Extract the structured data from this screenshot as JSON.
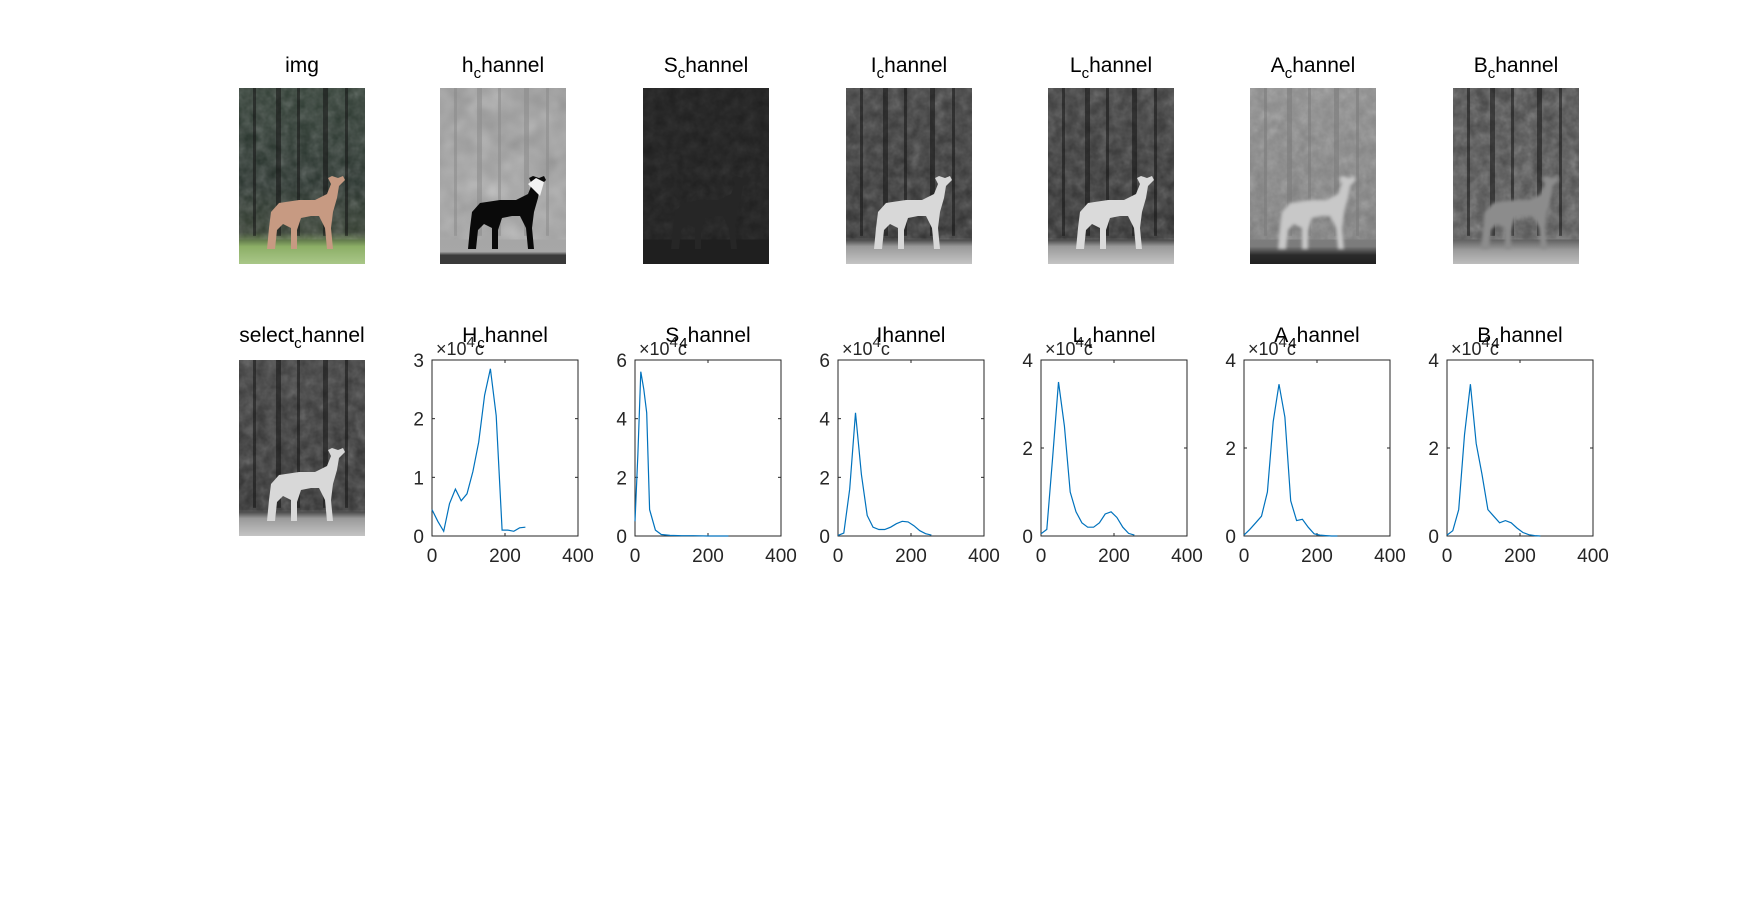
{
  "figure": {
    "image_panels": [
      {
        "title_main": "img",
        "title_sub": "",
        "title_rest": "",
        "kind": "color"
      },
      {
        "title_main": "h",
        "title_sub": "c",
        "title_rest": "hannel",
        "kind": "hue"
      },
      {
        "title_main": "S",
        "title_sub": "c",
        "title_rest": "hannel",
        "kind": "sat"
      },
      {
        "title_main": "I",
        "title_sub": "c",
        "title_rest": "hannel",
        "kind": "intensity"
      },
      {
        "title_main": "L",
        "title_sub": "c",
        "title_rest": "hannel",
        "kind": "light"
      },
      {
        "title_main": "A",
        "title_sub": "c",
        "title_rest": "hannel",
        "kind": "achan"
      },
      {
        "title_main": "B",
        "title_sub": "c",
        "title_rest": "hannel",
        "kind": "bchan"
      },
      {
        "title_main": "select",
        "title_sub": "c",
        "title_rest": "hannel",
        "kind": "intensity"
      }
    ],
    "exponent_label": {
      "times": "×10",
      "sup": "4",
      "tail": "c"
    }
  },
  "chart_data": [
    {
      "type": "line",
      "title_main": "H",
      "title_sub": "c",
      "title_rest": "hannel",
      "x": [
        0,
        16,
        32,
        48,
        64,
        80,
        96,
        112,
        128,
        144,
        160,
        176,
        192,
        208,
        224,
        240,
        256
      ],
      "series": [
        {
          "values": [
            0.45,
            0.25,
            0.08,
            0.55,
            0.8,
            0.6,
            0.72,
            1.1,
            1.6,
            2.4,
            2.85,
            2.05,
            0.1,
            0.1,
            0.08,
            0.14,
            0.15
          ]
        }
      ],
      "xlim": [
        0,
        400
      ],
      "ylim": [
        0,
        3
      ],
      "xticks": [
        0,
        200,
        400
      ],
      "xtick_labels": [
        "0",
        "200",
        "400"
      ],
      "yticks": [
        0,
        1,
        2,
        3
      ],
      "ytick_labels": [
        "0",
        "1",
        "2",
        "3"
      ],
      "line_color": "#0072BD",
      "grid": false
    },
    {
      "type": "line",
      "title_main": "S",
      "title_sub": "4",
      "title_rest": "hannel",
      "x": [
        0,
        8,
        16,
        24,
        32,
        40,
        56,
        72,
        96,
        128,
        160,
        200,
        256
      ],
      "series": [
        {
          "values": [
            0.5,
            2.8,
            5.6,
            5.0,
            4.2,
            0.9,
            0.2,
            0.05,
            0.02,
            0.01,
            0.01,
            0.0,
            0.0
          ]
        }
      ],
      "xlim": [
        0,
        400
      ],
      "ylim": [
        0,
        6
      ],
      "xticks": [
        0,
        200,
        400
      ],
      "xtick_labels": [
        "0",
        "200",
        "400"
      ],
      "yticks": [
        0,
        2,
        4,
        6
      ],
      "ytick_labels": [
        "0",
        "2",
        "4",
        "6"
      ],
      "line_color": "#0072BD",
      "grid": false
    },
    {
      "type": "line",
      "title_main": "I",
      "title_sub": "",
      "title_rest": "hannel",
      "x": [
        0,
        16,
        32,
        48,
        64,
        80,
        96,
        112,
        128,
        144,
        160,
        176,
        192,
        208,
        224,
        240,
        256
      ],
      "series": [
        {
          "values": [
            0.02,
            0.1,
            1.6,
            4.2,
            2.1,
            0.7,
            0.3,
            0.22,
            0.22,
            0.3,
            0.42,
            0.5,
            0.48,
            0.35,
            0.18,
            0.08,
            0.03
          ]
        }
      ],
      "xlim": [
        0,
        400
      ],
      "ylim": [
        0,
        6
      ],
      "xticks": [
        0,
        200,
        400
      ],
      "xtick_labels": [
        "0",
        "200",
        "400"
      ],
      "yticks": [
        0,
        2,
        4,
        6
      ],
      "ytick_labels": [
        "0",
        "2",
        "4",
        "6"
      ],
      "line_color": "#0072BD",
      "grid": false
    },
    {
      "type": "line",
      "title_main": "L",
      "title_sub": "4",
      "title_rest": "hannel",
      "x": [
        0,
        16,
        32,
        48,
        64,
        80,
        96,
        112,
        128,
        144,
        160,
        176,
        192,
        208,
        224,
        240,
        256
      ],
      "series": [
        {
          "values": [
            0.05,
            0.15,
            1.8,
            3.5,
            2.5,
            1.0,
            0.55,
            0.3,
            0.2,
            0.2,
            0.3,
            0.5,
            0.55,
            0.42,
            0.2,
            0.06,
            0.02
          ]
        }
      ],
      "xlim": [
        0,
        400
      ],
      "ylim": [
        0,
        4
      ],
      "xticks": [
        0,
        200,
        400
      ],
      "xtick_labels": [
        "0",
        "200",
        "400"
      ],
      "yticks": [
        0,
        2,
        4
      ],
      "ytick_labels": [
        "0",
        "2",
        "4"
      ],
      "line_color": "#0072BD",
      "grid": false
    },
    {
      "type": "line",
      "title_main": "A",
      "title_sub": "4",
      "title_rest": "hannel",
      "x": [
        0,
        16,
        32,
        48,
        64,
        80,
        96,
        112,
        128,
        144,
        160,
        176,
        192,
        208,
        224,
        240,
        256
      ],
      "series": [
        {
          "values": [
            0.02,
            0.15,
            0.3,
            0.45,
            1.0,
            2.6,
            3.45,
            2.7,
            0.8,
            0.35,
            0.38,
            0.2,
            0.05,
            0.02,
            0.01,
            0.0,
            0.0
          ]
        }
      ],
      "xlim": [
        0,
        400
      ],
      "ylim": [
        0,
        4
      ],
      "xticks": [
        0,
        200,
        400
      ],
      "xtick_labels": [
        "0",
        "200",
        "400"
      ],
      "yticks": [
        0,
        2,
        4
      ],
      "ytick_labels": [
        "0",
        "2",
        "4"
      ],
      "line_color": "#0072BD",
      "grid": false
    },
    {
      "type": "line",
      "title_main": "B",
      "title_sub": "4",
      "title_rest": "hannel",
      "x": [
        0,
        16,
        32,
        48,
        64,
        80,
        96,
        112,
        128,
        144,
        160,
        176,
        192,
        208,
        224,
        240,
        256
      ],
      "series": [
        {
          "values": [
            0.02,
            0.12,
            0.6,
            2.3,
            3.45,
            2.1,
            1.4,
            0.6,
            0.45,
            0.3,
            0.35,
            0.3,
            0.18,
            0.08,
            0.03,
            0.01,
            0.0
          ]
        }
      ],
      "xlim": [
        0,
        400
      ],
      "ylim": [
        0,
        4
      ],
      "xticks": [
        0,
        200,
        400
      ],
      "xtick_labels": [
        "0",
        "200",
        "400"
      ],
      "yticks": [
        0,
        2,
        4
      ],
      "ytick_labels": [
        "0",
        "2",
        "4"
      ],
      "line_color": "#0072BD",
      "grid": false
    }
  ]
}
